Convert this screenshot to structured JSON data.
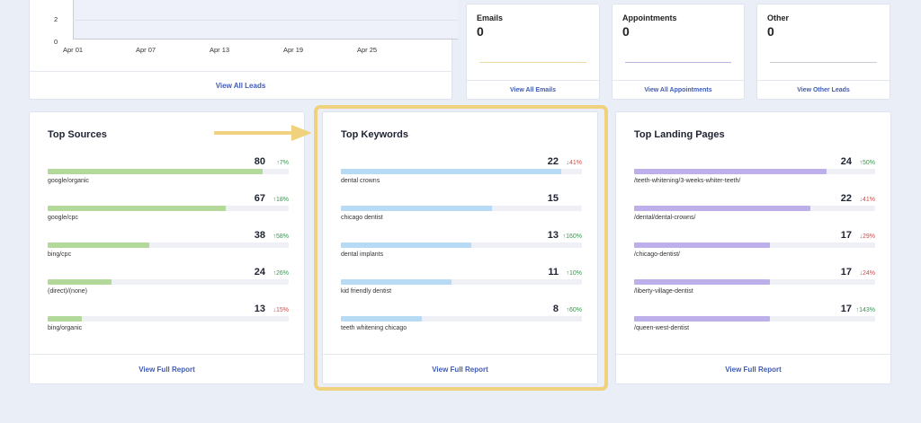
{
  "leads_chart": {
    "yticks": [
      "2",
      "0"
    ],
    "xticks": [
      "Apr 01",
      "Apr 07",
      "Apr 13",
      "Apr 19",
      "Apr 25"
    ],
    "footer_link": "View All Leads"
  },
  "stats": [
    {
      "title": "Emails",
      "value": "0",
      "link": "View All Emails",
      "spark_color": "#e9dca0"
    },
    {
      "title": "Appointments",
      "value": "0",
      "link": "View All Appointments",
      "spark_color": "#b7b1e4"
    },
    {
      "title": "Other",
      "value": "0",
      "link": "View Other Leads",
      "spark_color": "#c9cdd6"
    }
  ],
  "colors": {
    "sources": "#b2d89a",
    "keywords": "#b7dbf4",
    "landing": "#bdb0ea",
    "highlight": "#f0d27e",
    "arrow": "#f0d27e"
  },
  "top_sources": {
    "title": "Top Sources",
    "link": "View Full Report",
    "rows": [
      {
        "label": "google/organic",
        "value": "80",
        "change": "↑7%",
        "dir": "up",
        "fill": 0.89
      },
      {
        "label": "google/cpc",
        "value": "67",
        "change": "↑18%",
        "dir": "up",
        "fill": 0.74
      },
      {
        "label": "bing/cpc",
        "value": "38",
        "change": "↑58%",
        "dir": "up",
        "fill": 0.42
      },
      {
        "label": "(direct)/(none)",
        "value": "24",
        "change": "↑26%",
        "dir": "up",
        "fill": 0.265
      },
      {
        "label": "bing/organic",
        "value": "13",
        "change": "↓15%",
        "dir": "down",
        "fill": 0.14
      }
    ]
  },
  "top_keywords": {
    "title": "Top Keywords",
    "link": "View Full Report",
    "rows": [
      {
        "label": "dental crowns",
        "value": "22",
        "change": "↓41%",
        "dir": "down",
        "fill": 0.915
      },
      {
        "label": "chicago dentist",
        "value": "15",
        "change": "",
        "dir": "up",
        "fill": 0.625
      },
      {
        "label": "dental implants",
        "value": "13",
        "change": "↑160%",
        "dir": "up",
        "fill": 0.54
      },
      {
        "label": "kid friendly dentist",
        "value": "11",
        "change": "↑10%",
        "dir": "up",
        "fill": 0.46
      },
      {
        "label": "teeth whitening chicago",
        "value": "8",
        "change": "↑60%",
        "dir": "up",
        "fill": 0.335
      }
    ]
  },
  "top_landing": {
    "title": "Top Landing Pages",
    "link": "View Full Report",
    "rows": [
      {
        "label": "/teeth-whitening/3-weeks-whiter-teeth/",
        "value": "24",
        "change": "↑50%",
        "dir": "up",
        "fill": 0.8
      },
      {
        "label": "/dental/dental-crowns/",
        "value": "22",
        "change": "↓41%",
        "dir": "down",
        "fill": 0.73
      },
      {
        "label": "/chicago-dentist/",
        "value": "17",
        "change": "↓29%",
        "dir": "down",
        "fill": 0.565
      },
      {
        "label": "/liberty-village-dentist",
        "value": "17",
        "change": "↓24%",
        "dir": "down",
        "fill": 0.565
      },
      {
        "label": "/queen-west-dentist",
        "value": "17",
        "change": "↑143%",
        "dir": "up",
        "fill": 0.565
      }
    ]
  }
}
